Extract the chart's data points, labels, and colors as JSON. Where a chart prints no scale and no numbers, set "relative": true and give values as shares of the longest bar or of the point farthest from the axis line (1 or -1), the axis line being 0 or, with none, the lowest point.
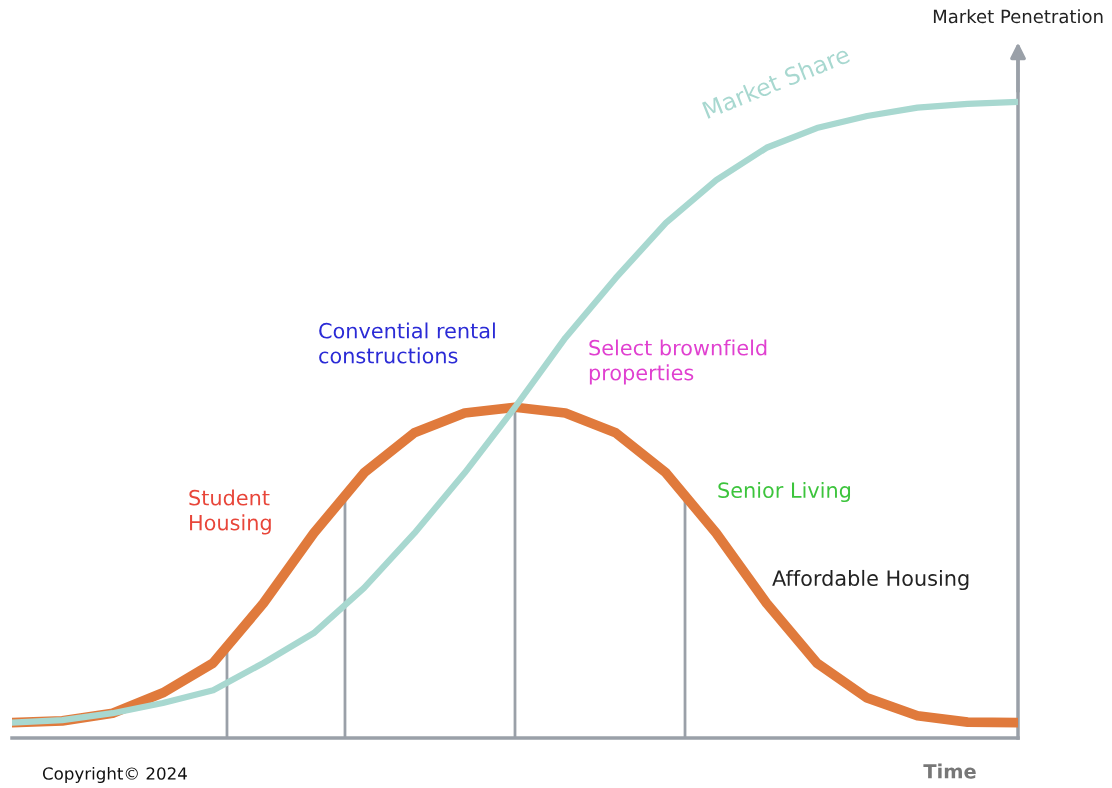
{
  "chart_data": {
    "type": "line",
    "relative": true,
    "xlabel": "Time",
    "ylabel": "Market Penetration",
    "categories": [
      null,
      null,
      null,
      null,
      null,
      null,
      null,
      null,
      null,
      null,
      null,
      null,
      null,
      null,
      null,
      null,
      null,
      null,
      null,
      null,
      null
    ],
    "series": [
      {
        "color": "#e07a3c",
        "values": [
          0.024,
          0.027,
          0.039,
          0.071,
          0.118,
          0.212,
          0.322,
          0.417,
          0.48,
          0.511,
          0.52,
          0.511,
          0.48,
          0.417,
          0.322,
          0.212,
          0.118,
          0.063,
          0.035,
          0.025,
          0.024
        ]
      },
      {
        "name": "Market Share",
        "color": "#a8d8d0",
        "values": [
          0.024,
          0.028,
          0.039,
          0.055,
          0.075,
          0.118,
          0.165,
          0.236,
          0.322,
          0.417,
          0.52,
          0.629,
          0.723,
          0.81,
          0.877,
          0.928,
          0.959,
          0.978,
          0.991,
          0.997,
          1
        ]
      }
    ],
    "annotations": [
      "Student\nHousing",
      "Convential rental\nconstructions",
      "Select brownfield\nproperties",
      "Senior Living",
      "Affordable Housing",
      "Copyright© 2024"
    ],
    "marker": "none",
    "line_style": "solid"
  }
}
